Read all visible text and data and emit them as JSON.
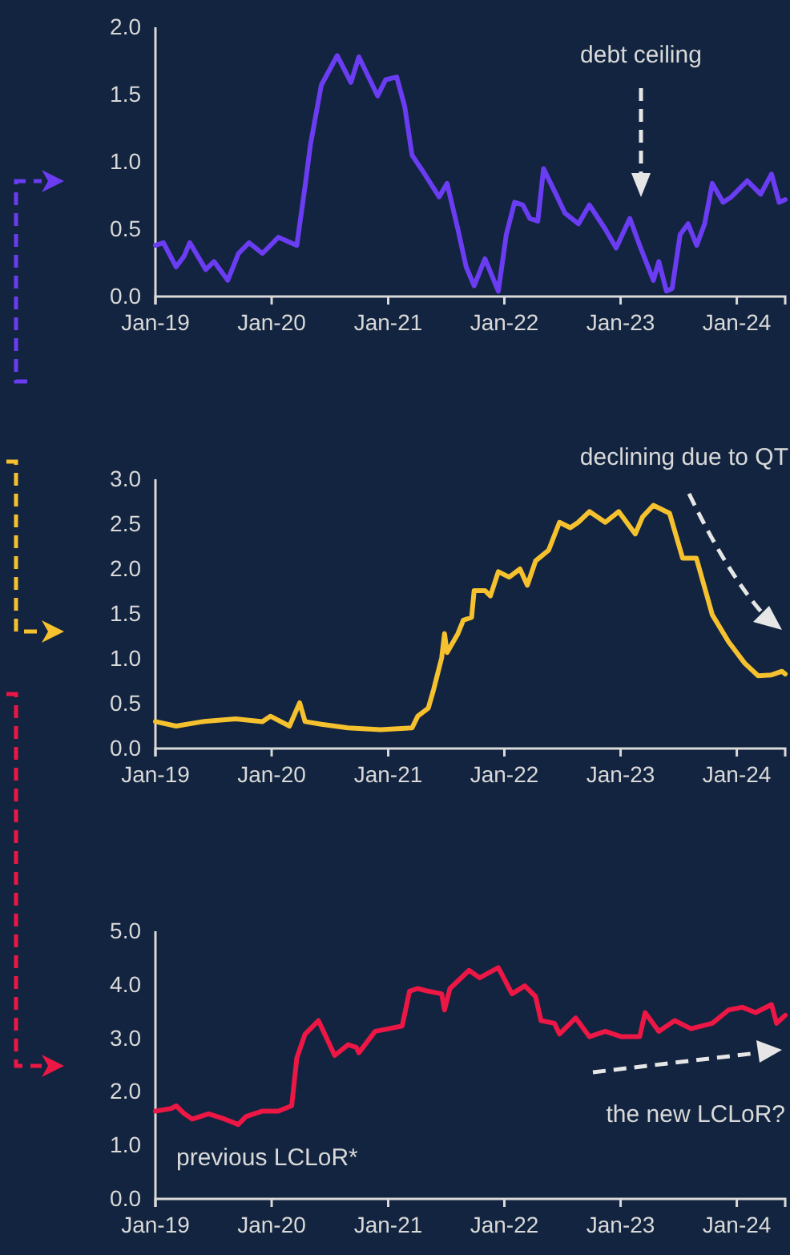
{
  "chart_data": [
    {
      "type": "line",
      "xlim": [
        "2019-01-01",
        "2024-06-01"
      ],
      "ylim": [
        0,
        2
      ],
      "yticks": [
        {
          "value": 0,
          "label": "0.0"
        },
        {
          "value": 0.5,
          "label": "0.5"
        },
        {
          "value": 1,
          "label": "1.0"
        },
        {
          "value": 1.5,
          "label": "1.5"
        },
        {
          "value": 2,
          "label": "2.0"
        }
      ],
      "xticks": [
        {
          "value": "2019-01-01",
          "label": "Jan-19"
        },
        {
          "value": "2020-01-01",
          "label": "Jan-20"
        },
        {
          "value": "2021-01-01",
          "label": "Jan-21"
        },
        {
          "value": "2022-01-01",
          "label": "Jan-22"
        },
        {
          "value": "2023-01-01",
          "label": "Jan-23"
        },
        {
          "value": "2024-01-01",
          "label": "Jan-24"
        }
      ],
      "grid": false,
      "annotations": [
        "debt ceiling"
      ],
      "series": [
        {
          "color": "#6a3cf2",
          "x": [
            "2019-01-01",
            "2019-01-26",
            "2019-03-07",
            "2019-04-01",
            "2019-04-19",
            "2019-06-08",
            "2019-07-04",
            "2019-08-16",
            "2019-09-19",
            "2019-10-22",
            "2019-12-03",
            "2020-01-22",
            "2020-03-20",
            "2020-04-15",
            "2020-05-02",
            "2020-06-05",
            "2020-07-25",
            "2020-09-06",
            "2020-10-01",
            "2020-11-29",
            "2020-12-24",
            "2021-01-28",
            "2021-02-22",
            "2021-03-17",
            "2021-04-20",
            "2021-06-10",
            "2021-07-05",
            "2021-08-08",
            "2021-09-03",
            "2021-09-28",
            "2021-11-01",
            "2021-12-13",
            "2022-01-07",
            "2022-02-02",
            "2022-02-28",
            "2022-03-22",
            "2022-04-16",
            "2022-05-04",
            "2022-06-16",
            "2022-07-10",
            "2022-08-22",
            "2022-09-25",
            "2022-11-14",
            "2022-12-18",
            "2023-01-30",
            "2023-03-02",
            "2023-04-14",
            "2023-05-01",
            "2023-05-25",
            "2023-06-12",
            "2023-07-07",
            "2023-08-01",
            "2023-08-28",
            "2023-09-22",
            "2023-10-16",
            "2023-11-19",
            "2023-12-15",
            "2024-02-03",
            "2024-03-16",
            "2024-04-19",
            "2024-05-13",
            "2024-06-01"
          ],
          "values": [
            0.38,
            0.4,
            0.22,
            0.3,
            0.4,
            0.2,
            0.26,
            0.12,
            0.32,
            0.4,
            0.32,
            0.44,
            0.38,
            0.82,
            1.13,
            1.57,
            1.79,
            1.59,
            1.78,
            1.49,
            1.61,
            1.63,
            1.41,
            1.05,
            0.93,
            0.74,
            0.84,
            0.5,
            0.22,
            0.08,
            0.28,
            0.04,
            0.46,
            0.7,
            0.68,
            0.58,
            0.56,
            0.95,
            0.74,
            0.62,
            0.54,
            0.68,
            0.5,
            0.36,
            0.58,
            0.38,
            0.12,
            0.26,
            0.04,
            0.06,
            0.46,
            0.54,
            0.38,
            0.54,
            0.84,
            0.7,
            0.74,
            0.86,
            0.76,
            0.91,
            0.7,
            0.72
          ]
        }
      ]
    },
    {
      "type": "line",
      "xlim": [
        "2019-01-01",
        "2024-06-01"
      ],
      "ylim": [
        0,
        3
      ],
      "yticks": [
        {
          "value": 0,
          "label": "0.0"
        },
        {
          "value": 0.5,
          "label": "0.5"
        },
        {
          "value": 1,
          "label": "1.0"
        },
        {
          "value": 1.5,
          "label": "1.5"
        },
        {
          "value": 2,
          "label": "2.0"
        },
        {
          "value": 2.5,
          "label": "2.5"
        },
        {
          "value": 3,
          "label": "3.0"
        }
      ],
      "xticks": [
        {
          "value": "2019-01-01",
          "label": "Jan-19"
        },
        {
          "value": "2020-01-01",
          "label": "Jan-20"
        },
        {
          "value": "2021-01-01",
          "label": "Jan-21"
        },
        {
          "value": "2022-01-01",
          "label": "Jan-22"
        },
        {
          "value": "2023-01-01",
          "label": "Jan-23"
        },
        {
          "value": "2024-01-01",
          "label": "Jan-24"
        }
      ],
      "grid": false,
      "annotations": [
        "declining due to QT"
      ],
      "series": [
        {
          "color": "#f5c12e",
          "x": [
            "2019-01-01",
            "2019-03-07",
            "2019-05-30",
            "2019-09-10",
            "2019-12-03",
            "2019-12-28",
            "2020-02-26",
            "2020-03-29",
            "2020-04-15",
            "2020-06-05",
            "2020-08-28",
            "2020-12-08",
            "2021-03-17",
            "2021-04-04",
            "2021-05-07",
            "2021-05-24",
            "2021-06-18",
            "2021-06-27",
            "2021-07-05",
            "2021-08-08",
            "2021-08-25",
            "2021-09-20",
            "2021-09-28",
            "2021-11-01",
            "2021-11-18",
            "2021-12-13",
            "2022-01-16",
            "2022-02-19",
            "2022-03-14",
            "2022-04-09",
            "2022-05-20",
            "2022-06-23",
            "2022-07-27",
            "2022-08-21",
            "2022-09-25",
            "2022-11-14",
            "2022-12-26",
            "2023-02-16",
            "2023-03-11",
            "2023-04-14",
            "2023-06-04",
            "2023-07-15",
            "2023-08-27",
            "2023-10-16",
            "2023-12-06",
            "2024-01-26",
            "2024-03-08",
            "2024-04-19",
            "2024-05-22",
            "2024-06-01"
          ],
          "values": [
            0.3,
            0.25,
            0.3,
            0.33,
            0.3,
            0.36,
            0.25,
            0.51,
            0.3,
            0.27,
            0.23,
            0.21,
            0.23,
            0.36,
            0.45,
            0.66,
            1.01,
            1.28,
            1.07,
            1.28,
            1.43,
            1.46,
            1.76,
            1.76,
            1.7,
            1.97,
            1.91,
            2.0,
            1.82,
            2.09,
            2.21,
            2.52,
            2.46,
            2.52,
            2.64,
            2.52,
            2.64,
            2.39,
            2.58,
            2.71,
            2.62,
            2.12,
            2.12,
            1.49,
            1.19,
            0.95,
            0.81,
            0.82,
            0.86,
            0.83
          ]
        }
      ]
    },
    {
      "type": "line",
      "xlim": [
        "2019-01-01",
        "2024-06-01"
      ],
      "ylim": [
        0,
        5
      ],
      "yticks": [
        {
          "value": 0,
          "label": "0.0"
        },
        {
          "value": 1,
          "label": "1.0"
        },
        {
          "value": 2,
          "label": "2.0"
        },
        {
          "value": 3,
          "label": "3.0"
        },
        {
          "value": 4,
          "label": "4.0"
        },
        {
          "value": 5,
          "label": "5.0"
        }
      ],
      "xticks": [
        {
          "value": "2019-01-01",
          "label": "Jan-19"
        },
        {
          "value": "2020-01-01",
          "label": "Jan-20"
        },
        {
          "value": "2021-01-01",
          "label": "Jan-21"
        },
        {
          "value": "2022-01-01",
          "label": "Jan-22"
        },
        {
          "value": "2023-01-01",
          "label": "Jan-23"
        },
        {
          "value": "2024-01-01",
          "label": "Jan-24"
        }
      ],
      "grid": false,
      "annotations": [
        "previous LCLoR*",
        "the new LCLoR?"
      ],
      "series": [
        {
          "color": "#ec1745",
          "x": [
            "2019-01-01",
            "2019-02-20",
            "2019-03-07",
            "2019-04-02",
            "2019-04-27",
            "2019-06-17",
            "2019-08-07",
            "2019-09-18",
            "2019-10-13",
            "2019-12-03",
            "2020-01-22",
            "2020-03-04",
            "2020-03-20",
            "2020-04-15",
            "2020-05-27",
            "2020-07-17",
            "2020-08-28",
            "2020-09-23",
            "2020-10-01",
            "2020-11-21",
            "2021-01-03",
            "2021-02-14",
            "2021-03-09",
            "2021-04-04",
            "2021-05-07",
            "2021-06-18",
            "2021-06-27",
            "2021-07-14",
            "2021-09-12",
            "2021-10-15",
            "2021-12-13",
            "2022-01-25",
            "2022-03-06",
            "2022-04-09",
            "2022-04-26",
            "2022-06-07",
            "2022-06-23",
            "2022-08-13",
            "2022-09-25",
            "2022-11-14",
            "2023-01-04",
            "2023-03-02",
            "2023-03-19",
            "2023-05-01",
            "2023-06-20",
            "2023-08-10",
            "2023-10-16",
            "2023-12-06",
            "2024-01-18",
            "2024-02-29",
            "2024-04-19",
            "2024-05-05",
            "2024-06-01"
          ],
          "values": [
            1.64,
            1.69,
            1.74,
            1.59,
            1.49,
            1.59,
            1.49,
            1.39,
            1.54,
            1.64,
            1.64,
            1.74,
            2.63,
            3.08,
            3.33,
            2.68,
            2.88,
            2.83,
            2.73,
            3.13,
            3.18,
            3.23,
            3.88,
            3.93,
            3.88,
            3.83,
            3.53,
            3.93,
            4.27,
            4.13,
            4.32,
            3.83,
            3.98,
            3.78,
            3.33,
            3.28,
            3.08,
            3.38,
            3.03,
            3.13,
            3.03,
            3.03,
            3.48,
            3.13,
            3.33,
            3.18,
            3.28,
            3.53,
            3.58,
            3.48,
            3.63,
            3.28,
            3.43
          ]
        }
      ]
    }
  ]
}
